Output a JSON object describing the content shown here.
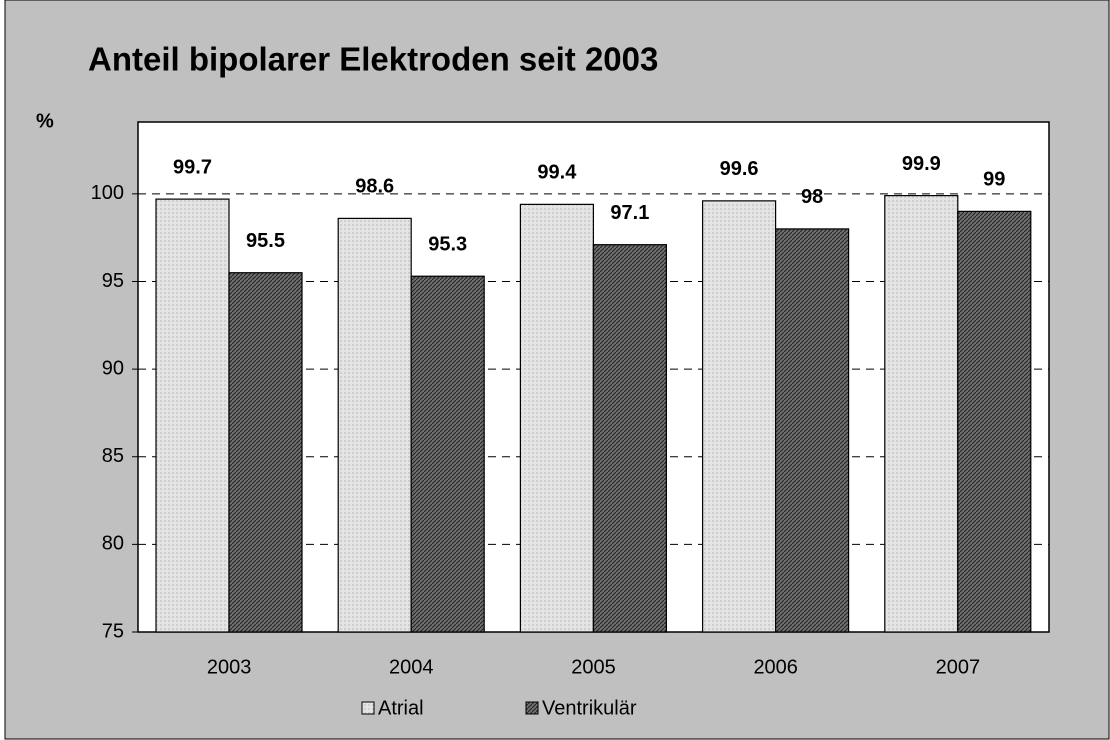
{
  "chart_data": {
    "type": "bar",
    "title": "Anteil bipolarer Elektroden seit 2003",
    "y_label": "%",
    "categories": [
      "2003",
      "2004",
      "2005",
      "2006",
      "2007"
    ],
    "series": [
      {
        "name": "Atrial",
        "color": "#e4e4e4",
        "values": [
          99.7,
          98.6,
          99.4,
          99.6,
          99.9
        ]
      },
      {
        "name": "Ventrikulär",
        "color": "#6e6e6e",
        "values": [
          95.5,
          95.3,
          97.1,
          98,
          99
        ]
      }
    ],
    "ylim": [
      75,
      104.1
    ],
    "yticks": [
      75,
      80,
      85,
      90,
      95,
      100
    ],
    "grid": true,
    "legend": "bottom"
  }
}
